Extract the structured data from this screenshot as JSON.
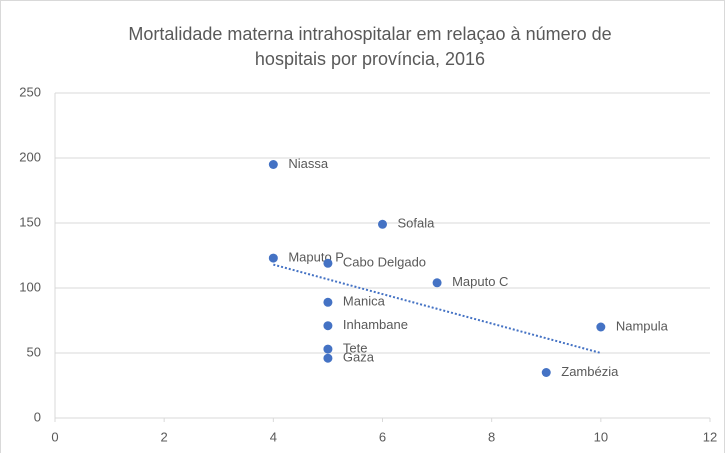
{
  "chart_data": {
    "type": "scatter",
    "title": [
      "Mortalidade materna intrahospitalar em relaçao à número de",
      "hospitais por província, 2016"
    ],
    "series": [
      {
        "color": "#4472c4",
        "labels": [
          "Niassa",
          "Sofala",
          "Maputo P",
          "Cabo Delgado",
          "Maputo C",
          "Manica",
          "Inhambane",
          "Nampula",
          "Tete",
          "Gaza",
          "Zambézia"
        ],
        "x": [
          4,
          6,
          4,
          5,
          7,
          5,
          5,
          10,
          5,
          5,
          9
        ],
        "values": [
          195,
          149,
          123,
          119,
          104,
          89,
          71,
          70,
          53,
          46,
          35
        ]
      }
    ],
    "trendline": {
      "x": [
        4,
        10
      ],
      "values": [
        118,
        50
      ],
      "color": "#4472c4"
    },
    "xlim": [
      0,
      12
    ],
    "xticks": [
      0,
      2,
      4,
      6,
      8,
      10,
      12
    ],
    "ylim": [
      0,
      250
    ],
    "yticks": [
      0,
      50,
      100,
      150,
      200,
      250
    ],
    "grid": true
  }
}
